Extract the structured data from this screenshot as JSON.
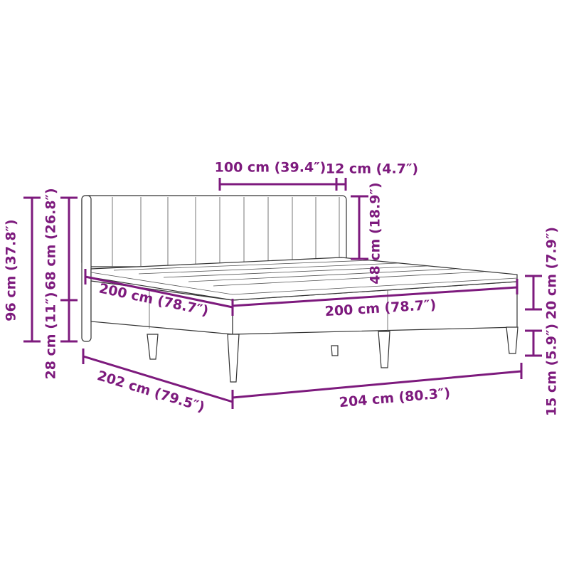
{
  "accent_color": "#7d1a7d",
  "dimensions": {
    "headboard_width": "100 cm (39.4″)",
    "headboard_depth": "12 cm (4.7″)",
    "headboard_height_above": "48 cm (18.9″)",
    "total_height": "96 cm (37.8″)",
    "headboard_height": "68 cm (26.8″)",
    "base_top_height": "28 cm (11″)",
    "mattress_length": "200 cm (78.7″)",
    "mattress_width": "200 cm (78.7″)",
    "base_height": "20 cm (7.9″)",
    "leg_height": "15 cm (5.9″)",
    "total_length": "202 cm (79.5″)",
    "total_width": "204 cm (80.3″)"
  }
}
